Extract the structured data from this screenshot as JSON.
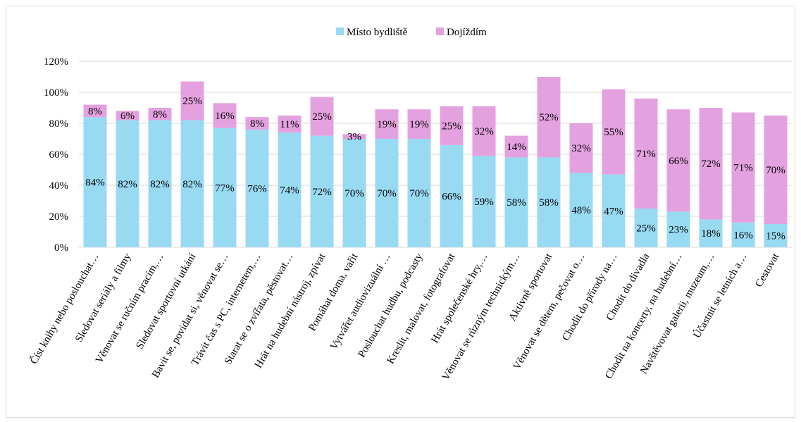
{
  "chart_data": {
    "type": "bar",
    "stacked": true,
    "categories": [
      "Číst knihy nebo poslouchat…",
      "Sledovat seriály a filmy",
      "Věnovat se ručním pracím,…",
      "Sledovat sportovní utkání",
      "Bavit se, povídat si, věnovat se…",
      "Trávit čas s PC, internetem,…",
      "Starat se o zvířata, pěstovat…",
      "Hrát na hudební nástroj, zpívat",
      "Pomáhat doma, vařit",
      "Vytvářet audiovizuální …",
      "Poslouchat hudbu, podcasty",
      "Kreslit, malovat, fotografovat",
      "Hrát společenské hry,…",
      "Věnovat se různým technickým…",
      "Aktivně sportovat",
      "Věnovat se dětem, pečovat o…",
      "Chodit do přírody na…",
      "Chodit do divadla",
      "Chodit na koncerty, na hudební…",
      "Navštěvovat galerii, muzeum,…",
      "Účastnit se letních a…",
      "Cestovat"
    ],
    "series": [
      {
        "name": "Místo bydliště",
        "color": "#99daf3",
        "values": [
          84,
          82,
          82,
          82,
          77,
          76,
          74,
          72,
          70,
          70,
          70,
          66,
          59,
          58,
          58,
          48,
          47,
          25,
          23,
          18,
          16,
          15
        ],
        "labels": [
          "84%",
          "82%",
          "82%",
          "82%",
          "77%",
          "76%",
          "74%",
          "72%",
          "70%",
          "70%",
          "70%",
          "66%",
          "59%",
          "58%",
          "58%",
          "48%",
          "47%",
          "25%",
          "23%",
          "18%",
          "16%",
          "15%"
        ]
      },
      {
        "name": "Dojíždím",
        "color": "#e4a1df",
        "values": [
          8,
          6,
          8,
          25,
          16,
          8,
          11,
          25,
          3,
          19,
          19,
          25,
          32,
          14,
          52,
          32,
          55,
          71,
          66,
          72,
          71,
          70
        ],
        "labels": [
          "8%",
          "6%",
          "8%",
          "25%",
          "16%",
          "8%",
          "11%",
          "25%",
          "3%",
          "19%",
          "19%",
          "25%",
          "32%",
          "14%",
          "52%",
          "32%",
          "55%",
          "71%",
          "66%",
          "72%",
          "71%",
          "70%"
        ]
      }
    ],
    "y_ticks": [
      "0%",
      "20%",
      "40%",
      "60%",
      "80%",
      "100%",
      "120%"
    ],
    "ylim": [
      0,
      120
    ],
    "title": "",
    "xlabel": "",
    "ylabel": "",
    "legend": "top",
    "grid": true
  }
}
